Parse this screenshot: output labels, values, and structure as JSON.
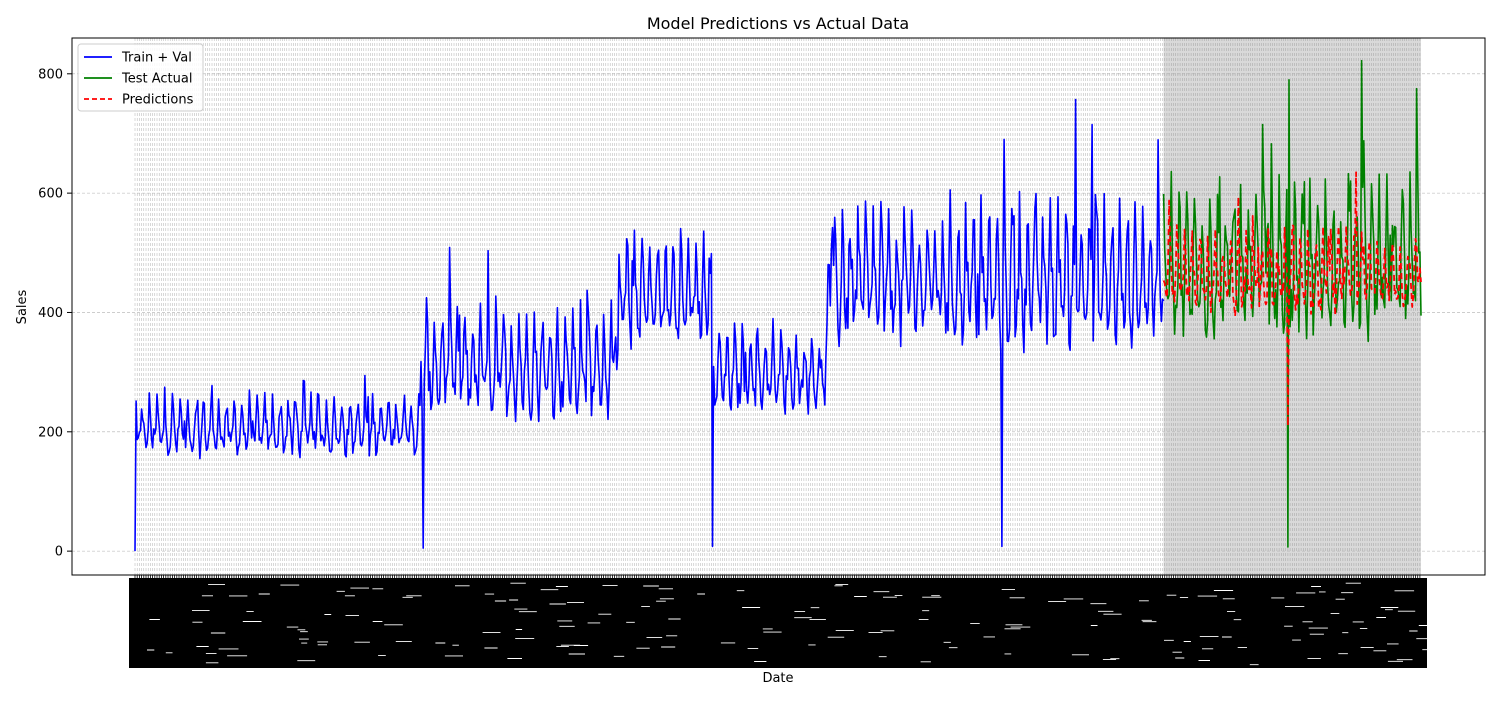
{
  "chart_data": {
    "type": "line",
    "title": "Model Predictions vs Actual Data",
    "xlabel": "Date",
    "ylabel": "Sales",
    "x_axis": "daily dates, tick labels rotated 90 degrees and overlapping (illegible)",
    "xlim_index": [
      0,
      1169
    ],
    "ylim": [
      -40,
      860
    ],
    "yticks": [
      0,
      200,
      400,
      600,
      800
    ],
    "grid": "on (dashed)",
    "legend_position": "top-left",
    "test_region_shaded": true,
    "series": [
      {
        "name": "Train + Val",
        "color": "#0000ff",
        "style": "solid",
        "index_range": [
          0,
          935
        ],
        "segments": [
          {
            "start": 0,
            "end": 260,
            "base": 200,
            "amplitude": 80,
            "note": "weekly oscillation ~160-290, peaks to ~360"
          },
          {
            "start": 260,
            "end": 440,
            "base": 300,
            "amplitude": 150,
            "note": "range ~180-520"
          },
          {
            "start": 440,
            "end": 525,
            "base": 420,
            "amplitude": 150,
            "note": "range ~260-600"
          },
          {
            "start": 525,
            "end": 630,
            "base": 290,
            "amplitude": 110,
            "note": "range ~200-460"
          },
          {
            "start": 630,
            "end": 935,
            "base": 440,
            "amplitude": 190,
            "note": "range ~290-760"
          }
        ],
        "notable_points": [
          {
            "x": 0,
            "y": 0
          },
          {
            "x": 262,
            "y": 5
          },
          {
            "x": 525,
            "y": 8
          },
          {
            "x": 788,
            "y": 8
          },
          {
            "x": 855,
            "y": 757
          },
          {
            "x": 790,
            "y": 690
          },
          {
            "x": 870,
            "y": 715
          }
        ]
      },
      {
        "name": "Test Actual",
        "color": "#008000",
        "style": "solid",
        "index_range": [
          935,
          1169
        ],
        "segments": [
          {
            "start": 935,
            "end": 1169,
            "base": 460,
            "amplitude": 200,
            "note": "range ~290-820"
          }
        ],
        "notable_points": [
          {
            "x": 1025,
            "y": 715
          },
          {
            "x": 1048,
            "y": 7
          },
          {
            "x": 1049,
            "y": 790
          },
          {
            "x": 1115,
            "y": 822
          },
          {
            "x": 1165,
            "y": 775
          }
        ]
      },
      {
        "name": "Predictions",
        "color": "#ff0000",
        "style": "dashed",
        "index_range": [
          935,
          1169
        ],
        "segments": [
          {
            "start": 935,
            "end": 1169,
            "base": 450,
            "amplitude": 110,
            "note": "range ~320-630"
          }
        ],
        "notable_points": [
          {
            "x": 1048,
            "y": 210
          },
          {
            "x": 1110,
            "y": 635
          }
        ]
      }
    ]
  }
}
